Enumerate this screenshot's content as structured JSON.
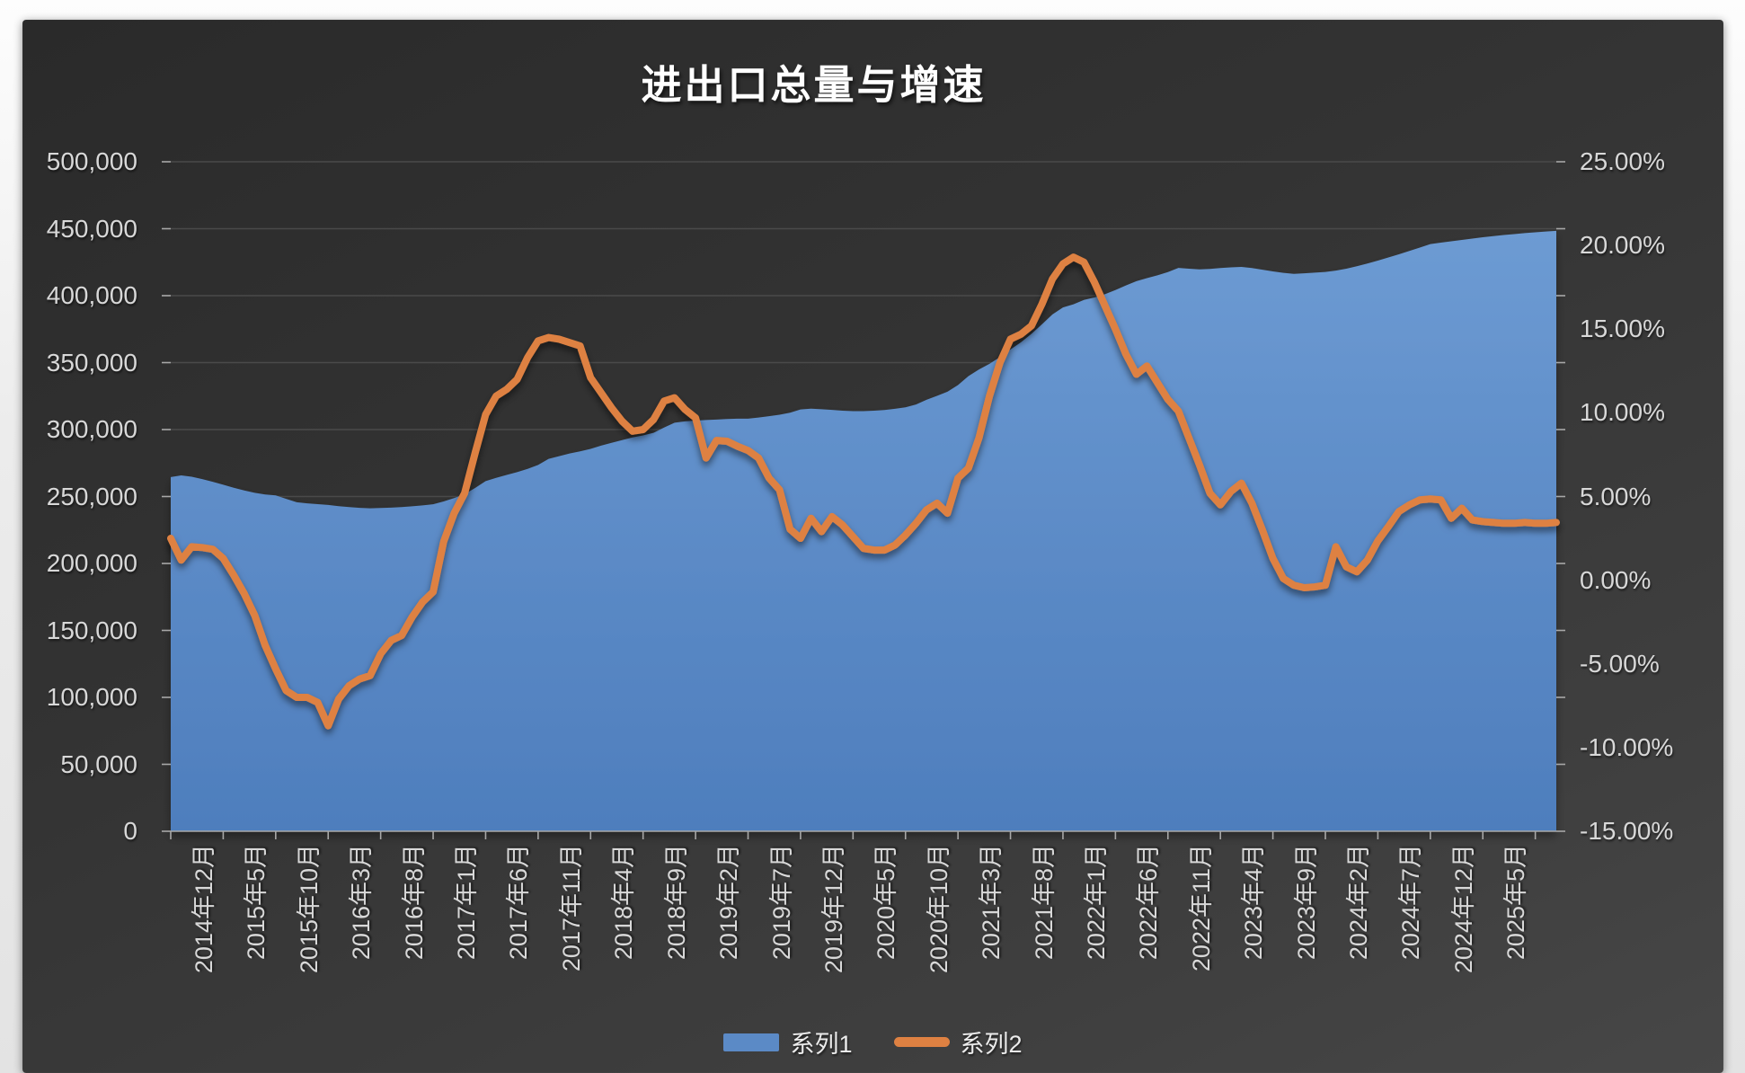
{
  "page": {
    "title": "进出口总量与增速"
  },
  "legend": {
    "series1_label": "系列1",
    "series2_label": "系列2"
  },
  "colors": {
    "area_fill": "#5b8ac6",
    "area_fill_top": "#6d9bd3",
    "area_fill_bottom": "#4e7ebd",
    "line_stroke": "#de8142",
    "gridline": "#4a4a4a",
    "axis_line": "#a8a8a8",
    "tick_text": "#d8d8d8",
    "plot_bg_dark": "#2a2a2a",
    "title_text": "#ffffff"
  },
  "axes": {
    "left_ticks": [
      "500,000",
      "450,000",
      "400,000",
      "350,000",
      "300,000",
      "250,000",
      "200,000",
      "150,000",
      "100,000",
      "50,000",
      "0"
    ],
    "right_ticks": [
      "25.00%",
      "20.00%",
      "15.00%",
      "10.00%",
      "5.00%",
      "0.00%",
      "-5.00%",
      "-10.00%",
      "-15.00%"
    ]
  },
  "chart_data": {
    "type": "combo",
    "title": "进出口总量与增速",
    "x_label_every": 5,
    "x_labels": [
      "2014年12月",
      "2015年5月",
      "2015年10月",
      "2016年3月",
      "2016年8月",
      "2017年1月",
      "2017年6月",
      "2017年11月",
      "2018年4月",
      "2018年9月",
      "2019年2月",
      "2019年7月",
      "2019年12月",
      "2020年5月",
      "2020年10月",
      "2021年3月",
      "2021年8月",
      "2022年1月",
      "2022年6月",
      "2022年11月",
      "2023年4月",
      "2023年9月",
      "2024年2月",
      "2024年7月",
      "2024年12月",
      "2025年5月"
    ],
    "left_axis": {
      "min": 0,
      "max": 500000,
      "step": 50000,
      "format": "#,##0"
    },
    "right_axis": {
      "min": -15,
      "max": 25,
      "step": 5,
      "format": "0.00%"
    },
    "grid": "horizontal-faint",
    "legend_position": "bottom-center",
    "series": [
      {
        "name": "系列1",
        "type": "area",
        "axis": "left",
        "values": [
          264500,
          265800,
          264800,
          263000,
          261000,
          258800,
          256500,
          254500,
          252800,
          251500,
          250800,
          248200,
          245700,
          244900,
          244300,
          243700,
          242800,
          242100,
          241500,
          241200,
          241400,
          241700,
          242100,
          242700,
          243400,
          244200,
          246300,
          248800,
          251800,
          256400,
          261500,
          263900,
          266100,
          268200,
          270600,
          273600,
          278100,
          280100,
          282100,
          283700,
          285600,
          288000,
          290100,
          292100,
          294100,
          295600,
          297600,
          301500,
          305100,
          306100,
          306700,
          307100,
          307500,
          307900,
          308100,
          308100,
          309000,
          310000,
          311100,
          312600,
          315000,
          315600,
          315200,
          314700,
          314100,
          313800,
          313800,
          314100,
          314600,
          315500,
          316600,
          318700,
          322200,
          325200,
          328300,
          333200,
          339900,
          344900,
          349100,
          354100,
          359800,
          365200,
          371500,
          378600,
          386000,
          391200,
          393500,
          396800,
          398700,
          401100,
          404200,
          407600,
          410800,
          413100,
          415200,
          417600,
          420700,
          420100,
          419600,
          420000,
          420600,
          421100,
          421500,
          420600,
          419400,
          418100,
          417000,
          416300,
          416700,
          417200,
          417700,
          418700,
          420100,
          422000,
          424000,
          426200,
          428500,
          430900,
          433400,
          435900,
          438500,
          439600,
          440600,
          441600,
          442600,
          443600,
          444500,
          445300,
          446000,
          446700,
          447300,
          447900,
          448400
        ]
      },
      {
        "name": "系列2",
        "type": "line",
        "axis": "right",
        "values": [
          2.5,
          1.2,
          2.0,
          1.95,
          1.85,
          1.3,
          0.3,
          -0.8,
          -2.1,
          -3.9,
          -5.3,
          -6.6,
          -7.0,
          -7.0,
          -7.3,
          -8.7,
          -7.1,
          -6.3,
          -5.9,
          -5.7,
          -4.4,
          -3.6,
          -3.3,
          -2.2,
          -1.3,
          -0.7,
          2.3,
          4.0,
          5.2,
          7.6,
          9.9,
          11.0,
          11.4,
          12.0,
          13.3,
          14.3,
          14.5,
          14.4,
          14.2,
          14.0,
          12.1,
          11.2,
          10.3,
          9.5,
          8.9,
          9.0,
          9.6,
          10.7,
          10.9,
          10.2,
          9.7,
          7.3,
          8.35,
          8.3,
          8.0,
          7.75,
          7.3,
          6.1,
          5.4,
          3.05,
          2.5,
          3.7,
          2.9,
          3.8,
          3.3,
          2.6,
          1.9,
          1.8,
          1.8,
          2.1,
          2.7,
          3.4,
          4.2,
          4.6,
          4.0,
          6.1,
          6.7,
          8.5,
          11.0,
          13.0,
          14.4,
          14.7,
          15.2,
          16.5,
          18.0,
          18.9,
          19.3,
          19.0,
          17.8,
          16.4,
          15.0,
          13.5,
          12.3,
          12.8,
          11.8,
          10.8,
          10.1,
          8.5,
          6.9,
          5.2,
          4.5,
          5.3,
          5.8,
          4.6,
          3.0,
          1.3,
          0.1,
          -0.3,
          -0.45,
          -0.4,
          -0.3,
          2.0,
          0.8,
          0.5,
          1.2,
          2.35,
          3.2,
          4.1,
          4.5,
          4.8,
          4.85,
          4.8,
          3.7,
          4.3,
          3.6,
          3.5,
          3.45,
          3.4,
          3.4,
          3.45,
          3.4,
          3.4,
          3.45
        ]
      }
    ]
  }
}
